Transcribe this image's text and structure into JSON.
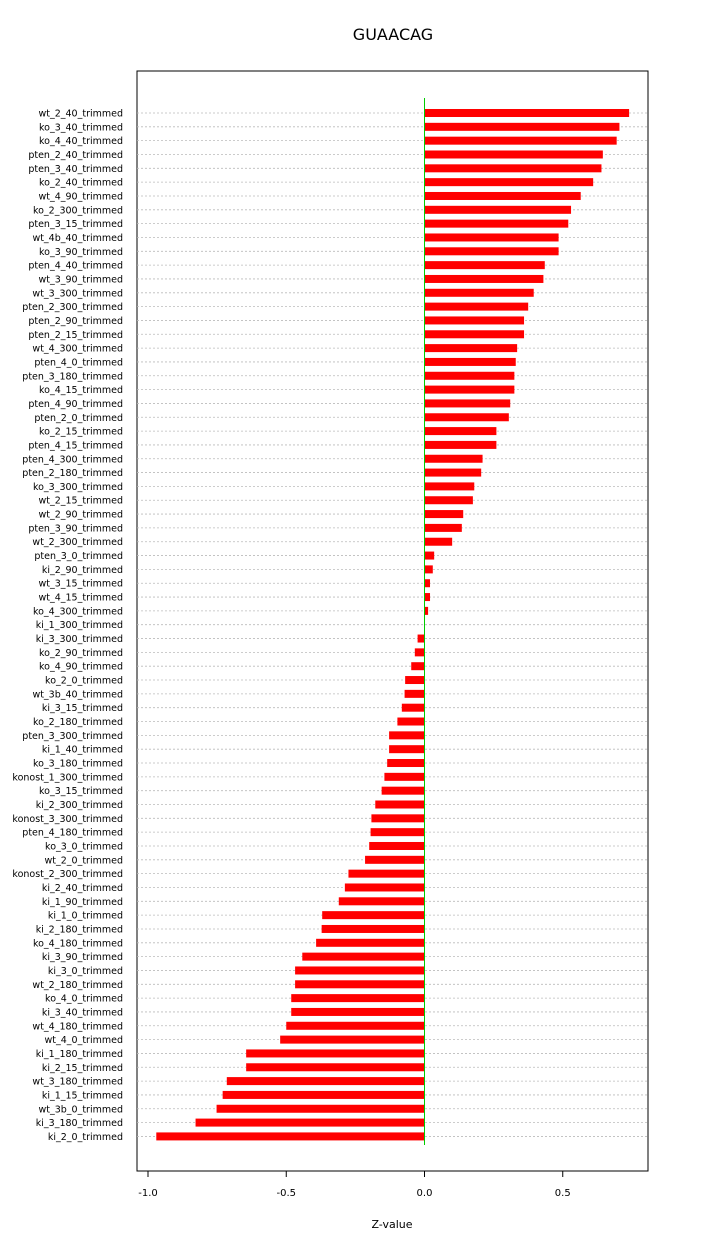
{
  "chart_data": {
    "type": "bar",
    "orientation": "horizontal",
    "title": "GUAACAG",
    "xlabel": "Z-value",
    "ylabel": "",
    "xlim": [
      -1.0,
      0.8
    ],
    "xticks": [
      "-1.0",
      "-0.5",
      "0.0",
      "0.5"
    ],
    "xtick_values": [
      -1.0,
      -0.5,
      0.0,
      0.5
    ],
    "reference_line": 0,
    "bar_color": "#ff0000",
    "reference_line_color": "#00cc00",
    "grid": "horizontal dotted",
    "categories": [
      "wt_2_40_trimmed",
      "ko_3_40_trimmed",
      "ko_4_40_trimmed",
      "pten_2_40_trimmed",
      "pten_3_40_trimmed",
      "ko_2_40_trimmed",
      "wt_4_90_trimmed",
      "ko_2_300_trimmed",
      "pten_3_15_trimmed",
      "wt_4b_40_trimmed",
      "ko_3_90_trimmed",
      "pten_4_40_trimmed",
      "wt_3_90_trimmed",
      "wt_3_300_trimmed",
      "pten_2_300_trimmed",
      "pten_2_90_trimmed",
      "pten_2_15_trimmed",
      "wt_4_300_trimmed",
      "pten_4_0_trimmed",
      "pten_3_180_trimmed",
      "ko_4_15_trimmed",
      "pten_4_90_trimmed",
      "pten_2_0_trimmed",
      "ko_2_15_trimmed",
      "pten_4_15_trimmed",
      "pten_4_300_trimmed",
      "pten_2_180_trimmed",
      "ko_3_300_trimmed",
      "wt_2_15_trimmed",
      "wt_2_90_trimmed",
      "pten_3_90_trimmed",
      "wt_2_300_trimmed",
      "pten_3_0_trimmed",
      "ki_2_90_trimmed",
      "wt_3_15_trimmed",
      "wt_4_15_trimmed",
      "ko_4_300_trimmed",
      "ki_1_300_trimmed",
      "ki_3_300_trimmed",
      "ko_2_90_trimmed",
      "ko_4_90_trimmed",
      "ko_2_0_trimmed",
      "wt_3b_40_trimmed",
      "ki_3_15_trimmed",
      "ko_2_180_trimmed",
      "pten_3_300_trimmed",
      "ki_1_40_trimmed",
      "ko_3_180_trimmed",
      "konost_1_300_trimmed",
      "ko_3_15_trimmed",
      "ki_2_300_trimmed",
      "konost_3_300_trimmed",
      "pten_4_180_trimmed",
      "ko_3_0_trimmed",
      "wt_2_0_trimmed",
      "konost_2_300_trimmed",
      "ki_2_40_trimmed",
      "ki_1_90_trimmed",
      "ki_1_0_trimmed",
      "ki_2_180_trimmed",
      "ko_4_180_trimmed",
      "ki_3_90_trimmed",
      "ki_3_0_trimmed",
      "wt_2_180_trimmed",
      "ko_4_0_trimmed",
      "ki_3_40_trimmed",
      "wt_4_180_trimmed",
      "wt_4_0_trimmed",
      "ki_1_180_trimmed",
      "ki_2_15_trimmed",
      "wt_3_180_trimmed",
      "ki_1_15_trimmed",
      "wt_3b_0_trimmed",
      "ki_3_180_trimmed",
      "ki_2_0_trimmed"
    ],
    "values": [
      0.74,
      0.705,
      0.695,
      0.645,
      0.64,
      0.61,
      0.565,
      0.53,
      0.52,
      0.485,
      0.485,
      0.435,
      0.43,
      0.395,
      0.375,
      0.36,
      0.36,
      0.335,
      0.33,
      0.325,
      0.325,
      0.31,
      0.305,
      0.26,
      0.26,
      0.21,
      0.205,
      0.18,
      0.175,
      0.14,
      0.135,
      0.1,
      0.035,
      0.03,
      0.02,
      0.02,
      0.013,
      0.0,
      -0.025,
      -0.035,
      -0.048,
      -0.07,
      -0.072,
      -0.082,
      -0.098,
      -0.128,
      -0.128,
      -0.135,
      -0.145,
      -0.155,
      -0.178,
      -0.192,
      -0.195,
      -0.2,
      -0.215,
      -0.275,
      -0.288,
      -0.31,
      -0.37,
      -0.372,
      -0.392,
      -0.442,
      -0.468,
      -0.468,
      -0.482,
      -0.482,
      -0.5,
      -0.522,
      -0.645,
      -0.645,
      -0.715,
      -0.73,
      -0.752,
      -0.828,
      -0.97
    ]
  }
}
